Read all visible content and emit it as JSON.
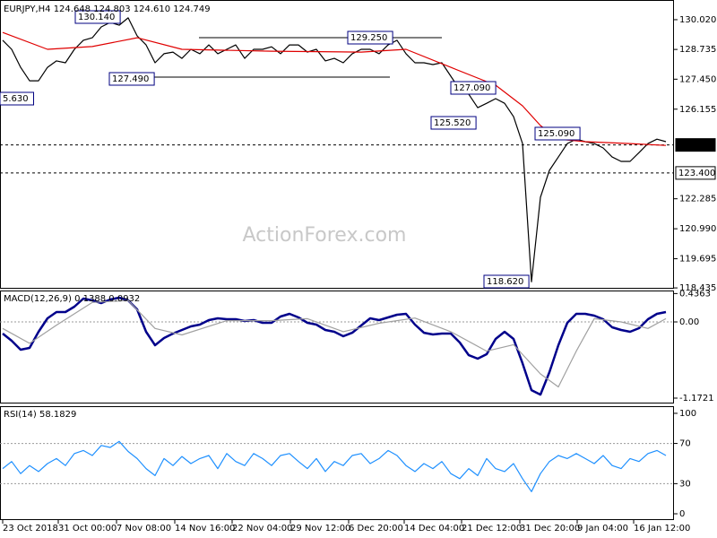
{
  "chart_data": [
    {
      "type": "line",
      "title": "EURJPY,H4  124.648 124.803 124.610 124.749",
      "watermark": "ActionForex.com",
      "xlim": [
        -0.3,
        74.9
      ],
      "ylim": [
        118.4,
        130.87
      ],
      "yticks": [
        {
          "value": 130.02,
          "label": "130.020"
        },
        {
          "value": 128.735,
          "label": "128.735"
        },
        {
          "value": 127.45,
          "label": "127.450"
        },
        {
          "value": 126.155,
          "label": "126.155"
        },
        {
          "value": 122.285,
          "label": "122.285"
        },
        {
          "value": 120.99,
          "label": "120.990"
        },
        {
          "value": 119.695,
          "label": "119.695"
        },
        {
          "value": 118.435,
          "label": "118.435"
        }
      ],
      "price_levels": [
        {
          "value": 124.61,
          "label": "124.610"
        },
        {
          "value": 123.4,
          "label": "123.400"
        }
      ],
      "annotations": [
        "130.140",
        "127.490",
        "5.630",
        "129.250",
        "127.090",
        "125.520",
        "125.090",
        "118.620"
      ],
      "series": [
        {
          "name": "EURJPY",
          "color": "#000000",
          "values": [
            129.13,
            128.74,
            127.96,
            127.38,
            127.38,
            127.96,
            128.24,
            128.16,
            128.74,
            129.13,
            129.24,
            129.71,
            129.9,
            129.78,
            130.1,
            129.32,
            128.93,
            128.16,
            128.55,
            128.62,
            128.35,
            128.74,
            128.55,
            128.93,
            128.55,
            128.74,
            128.93,
            128.35,
            128.74,
            128.74,
            128.85,
            128.55,
            128.93,
            128.93,
            128.62,
            128.74,
            128.24,
            128.35,
            128.16,
            128.55,
            128.74,
            128.74,
            128.55,
            128.93,
            129.13,
            128.55,
            128.16,
            128.16,
            128.08,
            128.16,
            127.58,
            127.0,
            126.8,
            126.22,
            126.41,
            126.61,
            126.41,
            125.83,
            124.67,
            118.7,
            122.35,
            123.51,
            124.09,
            124.67,
            124.86,
            124.75,
            124.67,
            124.48,
            124.09,
            123.9,
            123.9,
            124.28,
            124.67,
            124.86,
            124.75
          ]
        },
        {
          "name": "MA",
          "color": "#e00000",
          "x": [
            0,
            5,
            10,
            15,
            20,
            30,
            40,
            45,
            50,
            55,
            58,
            60,
            62,
            65,
            70,
            74
          ],
          "values": [
            129.47,
            128.74,
            128.86,
            129.24,
            128.74,
            128.66,
            128.62,
            128.74,
            127.96,
            127.19,
            126.3,
            125.45,
            124.86,
            124.75,
            124.67,
            124.59
          ]
        }
      ]
    },
    {
      "type": "line",
      "title": "MACD(12,26,9) 0.1388 0.0932",
      "xlim": [
        -0.3,
        74.9
      ],
      "ylim": [
        -1.255,
        0.483
      ],
      "yticks": [
        0.4363,
        {
          "value": 0,
          "label": "0.00"
        },
        -1.1721
      ],
      "levels": [
        0
      ],
      "series": [
        {
          "name": "MACD",
          "color": "#00008b",
          "values": [
            -0.179,
            -0.29,
            -0.428,
            -0.4,
            -0.152,
            0.055,
            0.152,
            0.152,
            0.235,
            0.359,
            0.331,
            0.29,
            0.345,
            0.373,
            0.331,
            0.193,
            -0.152,
            -0.359,
            -0.248,
            -0.179,
            -0.124,
            -0.069,
            -0.041,
            0.028,
            0.055,
            0.041,
            0.041,
            0.014,
            0.028,
            -0.014,
            -0.014,
            0.083,
            0.124,
            0.069,
            -0.014,
            -0.041,
            -0.124,
            -0.152,
            -0.221,
            -0.166,
            -0.055,
            0.055,
            0.028,
            0.069,
            0.11,
            0.124,
            -0.041,
            -0.166,
            -0.193,
            -0.179,
            -0.179,
            -0.317,
            -0.511,
            -0.566,
            -0.497,
            -0.262,
            -0.152,
            -0.262,
            -0.635,
            -1.049,
            -1.118,
            -0.773,
            -0.359,
            -0.014,
            0.124,
            0.124,
            0.097,
            0.041,
            -0.083,
            -0.124,
            -0.152,
            -0.097,
            0.041,
            0.124,
            0.152
          ]
        },
        {
          "name": "Signal",
          "color": "#a0a0a0",
          "x": [
            0,
            3,
            6,
            10,
            14,
            17,
            20,
            25,
            30,
            34,
            38,
            42,
            46,
            50,
            54,
            57,
            60,
            62,
            64,
            66,
            69,
            72,
            74
          ],
          "values": [
            -0.1,
            -0.33,
            -0.05,
            0.3,
            0.33,
            -0.1,
            -0.2,
            0.02,
            0.02,
            0.05,
            -0.15,
            -0.02,
            0.06,
            -0.15,
            -0.45,
            -0.35,
            -0.8,
            -1.0,
            -0.45,
            0.05,
            0.0,
            -0.1,
            0.05
          ]
        }
      ]
    },
    {
      "type": "line",
      "title": "RSI(14) 58.1829",
      "xlim": [
        -0.3,
        74.9
      ],
      "ylim": [
        -6.25,
        107.1
      ],
      "yticks": [
        100,
        70,
        30,
        0
      ],
      "levels": [
        70,
        30
      ],
      "xticks": [
        {
          "value": 0,
          "label": "23 Oct 2018"
        },
        {
          "value": 6.2,
          "label": "31 Oct 00:00"
        },
        {
          "value": 12.7,
          "label": "7 Nov 08:00"
        },
        {
          "value": 19.2,
          "label": "14 Nov 16:00"
        },
        {
          "value": 25.6,
          "label": "22 Nov 04:00"
        },
        {
          "value": 32.1,
          "label": "29 Nov 12:00"
        },
        {
          "value": 38.6,
          "label": "6 Dec 20:00"
        },
        {
          "value": 44.8,
          "label": "14 Dec 04:00"
        },
        {
          "value": 51.2,
          "label": "21 Dec 12:00"
        },
        {
          "value": 57.7,
          "label": "31 Dec 20:00"
        },
        {
          "value": 64.1,
          "label": "9 Jan 04:00"
        },
        {
          "value": 70.4,
          "label": "16 Jan 12:00"
        }
      ],
      "series": [
        {
          "name": "RSI",
          "color": "#1e90ff",
          "values": [
            45,
            52,
            40,
            48,
            42,
            50,
            55,
            48,
            60,
            63,
            58,
            68,
            66,
            72,
            62,
            55,
            45,
            38,
            55,
            48,
            57,
            50,
            55,
            58,
            45,
            60,
            52,
            48,
            60,
            55,
            48,
            58,
            60,
            52,
            45,
            55,
            42,
            52,
            48,
            58,
            60,
            50,
            55,
            63,
            58,
            48,
            42,
            50,
            45,
            52,
            40,
            35,
            45,
            38,
            55,
            45,
            42,
            50,
            35,
            22,
            40,
            52,
            58,
            55,
            60,
            55,
            50,
            58,
            48,
            45,
            55,
            52,
            60,
            63,
            58
          ]
        }
      ]
    }
  ]
}
